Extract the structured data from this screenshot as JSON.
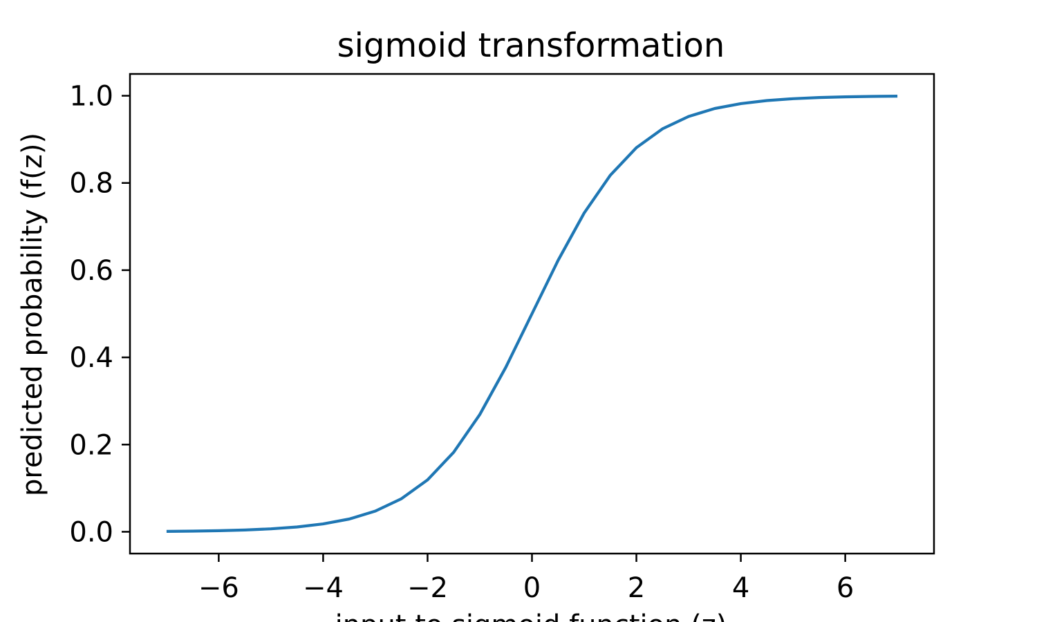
{
  "chart_data": {
    "type": "line",
    "title": "sigmoid transformation",
    "xlabel": "input to sigmoid function (z)",
    "ylabel": "predicted probability (f(z))",
    "xlim": [
      -7.7,
      7.7
    ],
    "ylim": [
      -0.05,
      1.05
    ],
    "xticks": [
      -6,
      -4,
      -2,
      0,
      2,
      4,
      6
    ],
    "xtick_labels": [
      "−6",
      "−4",
      "−2",
      "0",
      "2",
      "4",
      "6"
    ],
    "yticks": [
      0.0,
      0.2,
      0.4,
      0.6,
      0.8,
      1.0
    ],
    "ytick_labels": [
      "0.0",
      "0.2",
      "0.4",
      "0.6",
      "0.8",
      "1.0"
    ],
    "grid": false,
    "series": [
      {
        "color": "#1f77b4",
        "x": [
          -7.0,
          -6.5,
          -6.0,
          -5.5,
          -5.0,
          -4.5,
          -4.0,
          -3.5,
          -3.0,
          -2.5,
          -2.0,
          -1.5,
          -1.0,
          -0.5,
          0.0,
          0.5,
          1.0,
          1.5,
          2.0,
          2.5,
          3.0,
          3.5,
          4.0,
          4.5,
          5.0,
          5.5,
          6.0,
          6.5,
          7.0
        ],
        "y": [
          0.0009,
          0.0015,
          0.0025,
          0.0041,
          0.0067,
          0.011,
          0.018,
          0.0293,
          0.0474,
          0.0759,
          0.1192,
          0.1824,
          0.2689,
          0.3775,
          0.5,
          0.6225,
          0.7311,
          0.8176,
          0.8808,
          0.9241,
          0.9526,
          0.9707,
          0.982,
          0.989,
          0.9933,
          0.9959,
          0.9975,
          0.9985,
          0.9991
        ]
      }
    ]
  }
}
